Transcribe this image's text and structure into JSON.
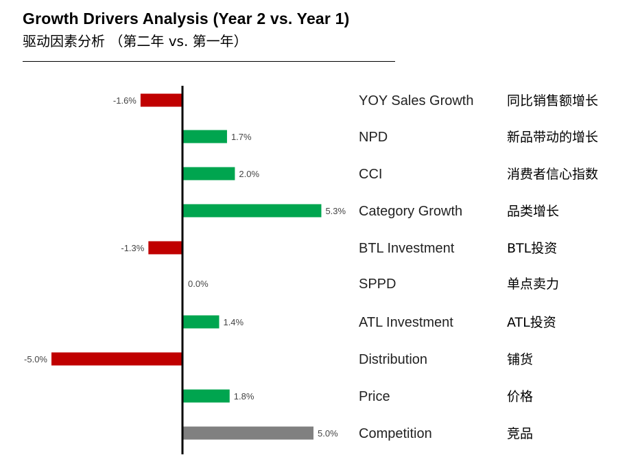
{
  "header": {
    "title_en": "Growth Drivers Analysis (Year 2 vs. Year 1)",
    "title_cn": "驱动因素分析 （第二年 vs. 第一年）"
  },
  "colors": {
    "positive": "#00a54f",
    "negative": "#c00000",
    "neutral": "#808080",
    "axis": "#000000"
  },
  "chart_data": {
    "type": "bar",
    "orientation": "horizontal",
    "categories": [
      {
        "en": "YOY Sales Growth",
        "cn": "同比销售额增长"
      },
      {
        "en": "NPD",
        "cn": "新品带动的增长"
      },
      {
        "en": "CCI",
        "cn": "消费者信心指数"
      },
      {
        "en": "Category Growth",
        "cn": "品类增长"
      },
      {
        "en": "BTL Investment",
        "cn": "BTL投资"
      },
      {
        "en": "SPPD",
        "cn": "单点卖力"
      },
      {
        "en": "ATL Investment",
        "cn": "ATL投资"
      },
      {
        "en": "Distribution",
        "cn": "铺货"
      },
      {
        "en": "Price",
        "cn": "价格"
      },
      {
        "en": "Competition",
        "cn": "竞品"
      }
    ],
    "values": [
      -1.6,
      1.7,
      2.0,
      5.3,
      -1.3,
      0.0,
      1.4,
      -5.0,
      1.8,
      5.0
    ],
    "value_labels": [
      "-1.6%",
      "1.7%",
      "2.0%",
      "5.3%",
      "-1.3%",
      "0.0%",
      "1.4%",
      "-5.0%",
      "1.8%",
      "5.0%"
    ],
    "bar_colors": [
      "negative",
      "positive",
      "positive",
      "positive",
      "negative",
      "positive",
      "positive",
      "negative",
      "positive",
      "neutral"
    ],
    "unit": "%",
    "xlim": [
      -5.0,
      5.3
    ],
    "grid": false,
    "legend": "none"
  }
}
